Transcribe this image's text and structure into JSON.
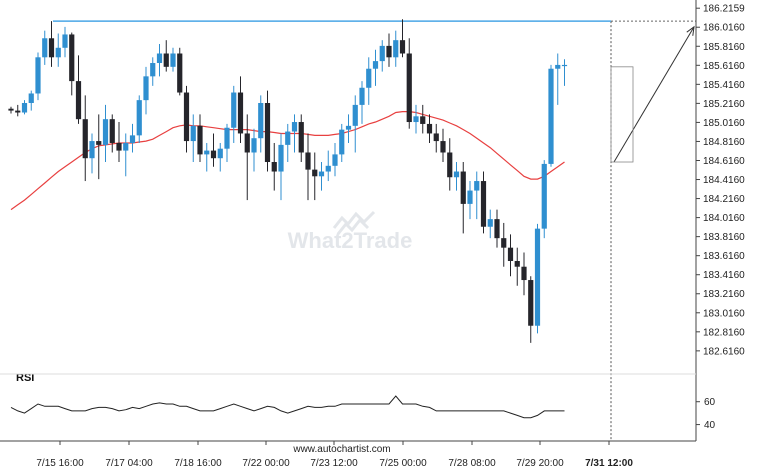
{
  "chart_data": {
    "type": "candlestick",
    "price_axis_ticks": [
      "186.2159",
      "186.0160",
      "185.8160",
      "185.6160",
      "185.4160",
      "185.2160",
      "185.0160",
      "184.8160",
      "184.6160",
      "184.4160",
      "184.2160",
      "184.0160",
      "183.8160",
      "183.6160",
      "183.4160",
      "183.2160",
      "183.0160",
      "182.8160",
      "182.6160"
    ],
    "price_range": [
      182.52,
      186.26
    ],
    "x_ticks": [
      "7/15 16:00",
      "7/17 04:00",
      "7/18 16:00",
      "7/22 00:00",
      "7/23 12:00",
      "7/25 00:00",
      "7/28 08:00",
      "7/29 20:00",
      "7/31 12:00"
    ],
    "x_tick_bold_index": 8,
    "resistance_level": 186.08,
    "projection": {
      "from": 184.6,
      "to": 186.02
    },
    "candles": [
      [
        185.16,
        185.18,
        185.11,
        185.14
      ],
      [
        185.14,
        185.2,
        185.08,
        185.12
      ],
      [
        185.12,
        185.25,
        185.1,
        185.22
      ],
      [
        185.22,
        185.35,
        185.14,
        185.32
      ],
      [
        185.32,
        185.75,
        185.25,
        185.7
      ],
      [
        185.7,
        185.98,
        185.62,
        185.9
      ],
      [
        185.9,
        186.08,
        185.6,
        185.7
      ],
      [
        185.7,
        185.95,
        185.6,
        185.8
      ],
      [
        185.8,
        186.02,
        185.7,
        185.94
      ],
      [
        185.94,
        185.96,
        185.3,
        185.45
      ],
      [
        185.45,
        185.72,
        185.0,
        185.05
      ],
      [
        185.05,
        185.3,
        184.4,
        184.64
      ],
      [
        184.64,
        184.9,
        184.48,
        184.82
      ],
      [
        184.82,
        185.1,
        184.42,
        184.78
      ],
      [
        184.78,
        185.2,
        184.6,
        185.05
      ],
      [
        185.05,
        185.1,
        184.7,
        184.8
      ],
      [
        184.8,
        185.02,
        184.6,
        184.72
      ],
      [
        184.72,
        184.9,
        184.45,
        184.8
      ],
      [
        184.8,
        185.0,
        184.7,
        184.88
      ],
      [
        184.88,
        185.3,
        184.8,
        185.25
      ],
      [
        185.25,
        185.6,
        185.1,
        185.5
      ],
      [
        185.5,
        185.7,
        185.4,
        185.64
      ],
      [
        185.64,
        185.84,
        185.5,
        185.74
      ],
      [
        185.74,
        185.88,
        185.55,
        185.6
      ],
      [
        185.6,
        185.8,
        185.55,
        185.74
      ],
      [
        185.74,
        185.8,
        185.3,
        185.33
      ],
      [
        185.33,
        185.4,
        184.7,
        184.82
      ],
      [
        184.82,
        185.1,
        184.6,
        184.98
      ],
      [
        184.98,
        185.1,
        184.6,
        184.68
      ],
      [
        184.68,
        184.8,
        184.5,
        184.72
      ],
      [
        184.72,
        184.9,
        184.55,
        184.64
      ],
      [
        184.64,
        184.8,
        184.5,
        184.74
      ],
      [
        184.74,
        185.0,
        184.6,
        184.96
      ],
      [
        184.96,
        185.4,
        184.8,
        185.33
      ],
      [
        185.33,
        185.5,
        184.8,
        184.9
      ],
      [
        184.9,
        185.1,
        184.2,
        184.7
      ],
      [
        184.7,
        184.95,
        184.5,
        184.85
      ],
      [
        184.85,
        185.3,
        184.7,
        185.22
      ],
      [
        185.22,
        185.35,
        184.5,
        184.6
      ],
      [
        184.6,
        184.8,
        184.3,
        184.5
      ],
      [
        184.5,
        184.9,
        184.2,
        184.78
      ],
      [
        184.78,
        185.0,
        184.6,
        184.92
      ],
      [
        184.92,
        185.1,
        184.7,
        185.02
      ],
      [
        185.02,
        185.1,
        184.6,
        184.7
      ],
      [
        184.7,
        184.9,
        184.2,
        184.52
      ],
      [
        184.52,
        184.7,
        184.2,
        184.45
      ],
      [
        184.45,
        184.6,
        184.3,
        184.5
      ],
      [
        184.5,
        184.72,
        184.4,
        184.56
      ],
      [
        184.56,
        184.8,
        184.45,
        184.68
      ],
      [
        184.68,
        185.0,
        184.6,
        184.94
      ],
      [
        184.94,
        185.1,
        184.8,
        184.98
      ],
      [
        184.98,
        185.3,
        184.7,
        185.2
      ],
      [
        185.2,
        185.45,
        185.0,
        185.38
      ],
      [
        185.38,
        185.7,
        185.2,
        185.58
      ],
      [
        185.58,
        185.78,
        185.4,
        185.66
      ],
      [
        185.66,
        185.88,
        185.55,
        185.82
      ],
      [
        185.82,
        185.95,
        185.6,
        185.7
      ],
      [
        185.7,
        185.98,
        185.6,
        185.88
      ],
      [
        185.88,
        186.1,
        185.7,
        185.74
      ],
      [
        185.74,
        185.9,
        184.95,
        185.02
      ],
      [
        185.02,
        185.2,
        184.9,
        185.08
      ],
      [
        185.08,
        185.2,
        184.9,
        185.0
      ],
      [
        185.0,
        185.1,
        184.8,
        184.9
      ],
      [
        184.9,
        185.0,
        184.7,
        184.82
      ],
      [
        184.82,
        184.95,
        184.6,
        184.7
      ],
      [
        184.7,
        184.85,
        184.3,
        184.44
      ],
      [
        184.44,
        184.6,
        184.3,
        184.5
      ],
      [
        184.5,
        184.6,
        183.85,
        184.16
      ],
      [
        184.16,
        184.4,
        184.0,
        184.3
      ],
      [
        184.3,
        184.5,
        184.0,
        184.4
      ],
      [
        184.4,
        184.5,
        183.85,
        183.92
      ],
      [
        183.92,
        184.1,
        183.8,
        184.0
      ],
      [
        184.0,
        184.1,
        183.7,
        183.8
      ],
      [
        183.8,
        183.96,
        183.5,
        183.7
      ],
      [
        183.7,
        183.84,
        183.4,
        183.56
      ],
      [
        183.56,
        183.7,
        183.3,
        183.5
      ],
      [
        183.5,
        183.65,
        183.2,
        183.36
      ],
      [
        183.36,
        183.4,
        182.7,
        182.88
      ],
      [
        182.88,
        183.95,
        182.8,
        183.9
      ],
      [
        183.9,
        184.62,
        183.8,
        184.58
      ],
      [
        184.58,
        185.62,
        184.55,
        185.58
      ],
      [
        185.58,
        185.74,
        185.2,
        185.62
      ],
      [
        185.62,
        185.68,
        185.4,
        185.62
      ]
    ],
    "ma": [
      184.1,
      184.15,
      184.2,
      184.26,
      184.32,
      184.38,
      184.44,
      184.5,
      184.55,
      184.6,
      184.65,
      184.7,
      184.74,
      184.77,
      184.78,
      184.79,
      184.8,
      184.8,
      184.8,
      184.81,
      184.82,
      184.84,
      184.88,
      184.92,
      184.96,
      184.98,
      184.99,
      184.98,
      184.98,
      184.97,
      184.96,
      184.95,
      184.94,
      184.94,
      184.94,
      184.94,
      184.93,
      184.92,
      184.92,
      184.91,
      184.9,
      184.9,
      184.9,
      184.9,
      184.89,
      184.88,
      184.88,
      184.88,
      184.89,
      184.9,
      184.92,
      184.94,
      184.97,
      185.0,
      185.02,
      185.05,
      185.08,
      185.12,
      185.13,
      185.13,
      185.12,
      185.1,
      185.08,
      185.06,
      185.04,
      185.01,
      184.98,
      184.94,
      184.9,
      184.85,
      184.8,
      184.75,
      184.69,
      184.63,
      184.57,
      184.51,
      184.45,
      184.42,
      184.42,
      184.45,
      184.5,
      184.55,
      184.6
    ],
    "rsi_axis_ticks": [
      "60",
      "40"
    ],
    "rsi_range": [
      30,
      72
    ],
    "rsi": [
      55,
      52,
      50,
      54,
      58,
      56,
      56,
      56,
      54,
      52,
      52,
      52,
      54,
      55,
      55,
      54,
      52,
      53,
      55,
      54,
      56,
      58,
      59,
      58,
      58,
      56,
      56,
      54,
      52,
      52,
      52,
      54,
      56,
      58,
      56,
      54,
      52,
      54,
      56,
      55,
      52,
      50,
      52,
      54,
      56,
      55,
      55,
      56,
      56,
      58,
      58,
      58,
      58,
      58,
      58,
      58,
      58,
      65,
      58,
      58,
      58,
      56,
      55,
      52,
      52,
      52,
      52,
      52,
      52,
      52,
      52,
      52,
      52,
      52,
      50,
      48,
      46,
      46,
      48,
      52,
      52,
      52,
      52
    ]
  },
  "labels": {
    "rsi_title": "RSI",
    "footer_url": "www.autochartist.com",
    "watermark_text": "What2Trade"
  },
  "colors": {
    "bull": "#2f8fd0",
    "bear": "#25252b",
    "ma": "#e84040",
    "resistance": "#4aa6e6",
    "arrow": "#333333",
    "grid": "#eeeeee",
    "axis": "#444444"
  }
}
